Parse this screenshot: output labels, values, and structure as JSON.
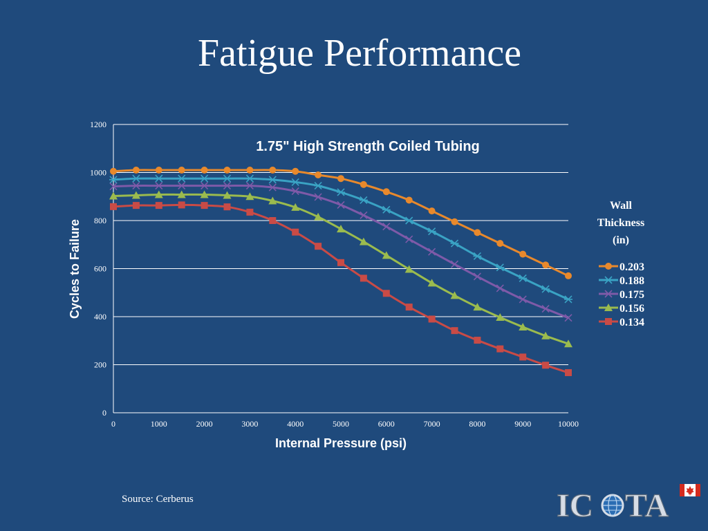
{
  "slide": {
    "title": "Fatigue Performance",
    "source": "Source: Cerberus",
    "logo_text_left": "IC",
    "logo_text_right": "TA"
  },
  "colors": {
    "background": "#1f4a7c",
    "axis_text": "#ffffff",
    "gridline": "#ffffff",
    "flag_red": "#d52b1e"
  },
  "chart_data": {
    "type": "line",
    "title": "1.75\" High Strength Coiled Tubing",
    "xlabel": "Internal Pressure  (psi)",
    "ylabel": "Cycles to Failure",
    "xlim": [
      0,
      10000
    ],
    "ylim": [
      0,
      1200
    ],
    "xticks": [
      0,
      1000,
      2000,
      3000,
      4000,
      5000,
      6000,
      7000,
      8000,
      9000,
      10000
    ],
    "yticks": [
      0,
      200,
      400,
      600,
      800,
      1000,
      1200
    ],
    "grid": true,
    "legend_title": [
      "Wall",
      "Thickness",
      "(in)"
    ],
    "legend_position": "right",
    "x": [
      0,
      500,
      1000,
      1500,
      2000,
      2500,
      3000,
      3500,
      4000,
      4500,
      5000,
      5500,
      6000,
      6500,
      7000,
      7500,
      8000,
      8500,
      9000,
      9500,
      10000
    ],
    "series": [
      {
        "name": "0.203",
        "color": "#e8892c",
        "marker": "circle",
        "values": [
          1005,
          1010,
          1010,
          1010,
          1010,
          1010,
          1010,
          1010,
          1005,
          990,
          975,
          950,
          920,
          885,
          840,
          795,
          750,
          705,
          660,
          615,
          570
        ]
      },
      {
        "name": "0.188",
        "color": "#3aa3c4",
        "marker": "star",
        "values": [
          970,
          975,
          975,
          975,
          975,
          975,
          975,
          970,
          960,
          945,
          918,
          885,
          845,
          800,
          755,
          705,
          652,
          605,
          560,
          515,
          472
        ]
      },
      {
        "name": "0.175",
        "color": "#7e5aa8",
        "marker": "x",
        "values": [
          942,
          945,
          945,
          945,
          945,
          945,
          945,
          938,
          922,
          898,
          865,
          822,
          775,
          722,
          670,
          618,
          567,
          518,
          472,
          433,
          395
        ]
      },
      {
        "name": "0.156",
        "color": "#9bbb4e",
        "marker": "triangle",
        "values": [
          902,
          905,
          908,
          908,
          908,
          905,
          900,
          882,
          855,
          815,
          765,
          712,
          655,
          597,
          540,
          488,
          440,
          397,
          357,
          320,
          287
        ]
      },
      {
        "name": "0.134",
        "color": "#c94b46",
        "marker": "square",
        "values": [
          858,
          863,
          863,
          865,
          863,
          857,
          835,
          800,
          752,
          693,
          625,
          560,
          497,
          440,
          390,
          342,
          302,
          266,
          232,
          198,
          167
        ]
      }
    ]
  }
}
